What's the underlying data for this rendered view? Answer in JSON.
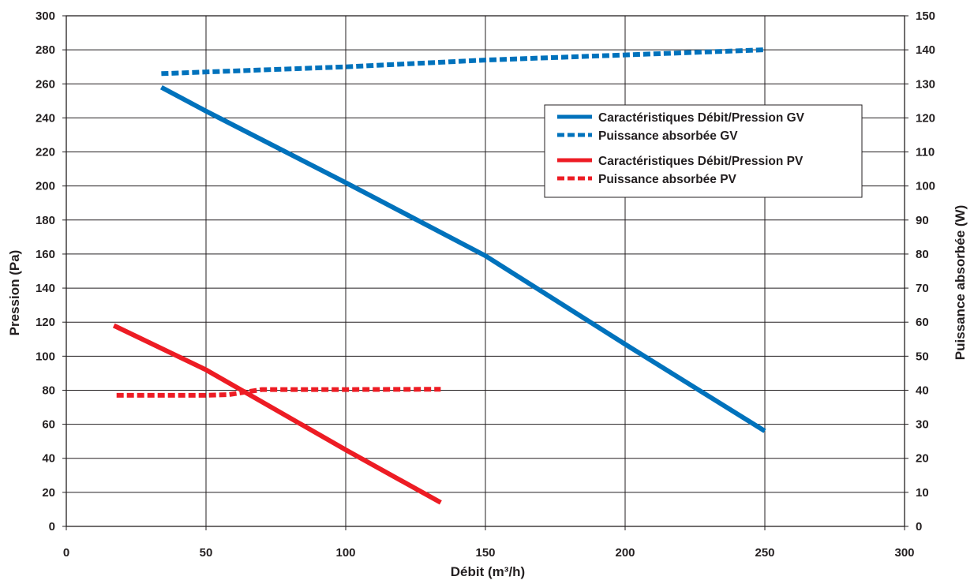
{
  "chart_data": {
    "type": "line",
    "title": "",
    "xlabel": "Débit (m³/h)",
    "ylabel_left": "Pression (Pa)",
    "ylabel_right": "Puissance absorbée (W)",
    "xlim": [
      0,
      300
    ],
    "ylim_left": [
      0,
      300
    ],
    "ylim_right": [
      0,
      150
    ],
    "x_ticks": [
      0,
      50,
      100,
      150,
      200,
      250,
      300
    ],
    "y_left_ticks": [
      0,
      20,
      40,
      60,
      80,
      100,
      120,
      140,
      160,
      180,
      200,
      220,
      240,
      260,
      280,
      300
    ],
    "y_right_ticks": [
      0,
      10,
      20,
      30,
      40,
      50,
      60,
      70,
      80,
      90,
      100,
      110,
      120,
      130,
      140,
      150
    ],
    "grid": true,
    "legend_position": "top-right",
    "series": [
      {
        "name": "Caractéristiques Débit/Pression GV",
        "color": "#0072bc",
        "style": "solid",
        "axis": "left",
        "points": [
          [
            34,
            258
          ],
          [
            50,
            244
          ],
          [
            100,
            202
          ],
          [
            150,
            159
          ],
          [
            200,
            107
          ],
          [
            250,
            56
          ]
        ]
      },
      {
        "name": "Puissance absorbée GV",
        "color": "#0072bc",
        "style": "dashed",
        "axis": "right",
        "points": [
          [
            34,
            133
          ],
          [
            100,
            135
          ],
          [
            150,
            137
          ],
          [
            200,
            138.5
          ],
          [
            250,
            140
          ]
        ]
      },
      {
        "name": "Caractéristiques Débit/Pression PV",
        "color": "#ed1c24",
        "style": "solid",
        "axis": "left",
        "points": [
          [
            17,
            118
          ],
          [
            50,
            92
          ],
          [
            100,
            45
          ],
          [
            134,
            14
          ]
        ]
      },
      {
        "name": "Puissance absorbée PV",
        "color": "#ed1c24",
        "style": "dashed",
        "axis": "right",
        "points": [
          [
            18,
            38.5
          ],
          [
            50,
            38.5
          ],
          [
            58,
            38.7
          ],
          [
            70,
            40.2
          ],
          [
            100,
            40.2
          ],
          [
            134,
            40.3
          ]
        ]
      }
    ]
  }
}
